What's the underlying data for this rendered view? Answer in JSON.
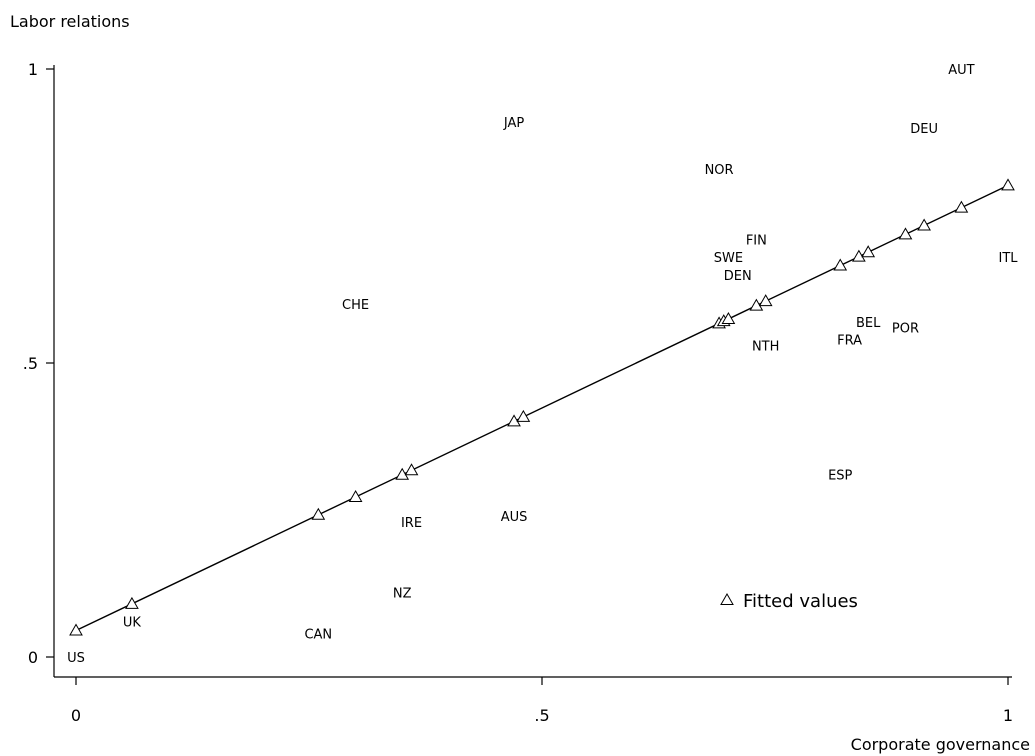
{
  "chart_data": {
    "type": "scatter",
    "xlabel": "Corporate governance",
    "ylabel": "Labor relations",
    "xlim": [
      0,
      1
    ],
    "ylim": [
      0,
      1
    ],
    "xticks": [
      {
        "value": 0,
        "label": "0"
      },
      {
        "value": 0.5,
        "label": ".5"
      },
      {
        "value": 1,
        "label": "1"
      }
    ],
    "yticks": [
      {
        "value": 0,
        "label": "0"
      },
      {
        "value": 0.5,
        "label": ".5"
      },
      {
        "value": 1,
        "label": "1"
      }
    ],
    "grid": false,
    "legend": {
      "position": "bottom-right",
      "entries": [
        "Fitted values"
      ]
    },
    "points": [
      {
        "label": "US",
        "x": 0.0,
        "y": 0.0
      },
      {
        "label": "UK",
        "x": 0.06,
        "y": 0.06
      },
      {
        "label": "CAN",
        "x": 0.26,
        "y": 0.04
      },
      {
        "label": "NZ",
        "x": 0.35,
        "y": 0.11
      },
      {
        "label": "IRE",
        "x": 0.36,
        "y": 0.23
      },
      {
        "label": "AUS",
        "x": 0.47,
        "y": 0.24
      },
      {
        "label": "CHE",
        "x": 0.3,
        "y": 0.6
      },
      {
        "label": "JAP",
        "x": 0.47,
        "y": 0.91
      },
      {
        "label": "NOR",
        "x": 0.69,
        "y": 0.83
      },
      {
        "label": "FIN",
        "x": 0.73,
        "y": 0.71
      },
      {
        "label": "SWE",
        "x": 0.7,
        "y": 0.68
      },
      {
        "label": "DEN",
        "x": 0.71,
        "y": 0.65
      },
      {
        "label": "NTH",
        "x": 0.74,
        "y": 0.53
      },
      {
        "label": "BEL",
        "x": 0.85,
        "y": 0.57
      },
      {
        "label": "FRA",
        "x": 0.83,
        "y": 0.54
      },
      {
        "label": "POR",
        "x": 0.89,
        "y": 0.56
      },
      {
        "label": "ESP",
        "x": 0.82,
        "y": 0.31
      },
      {
        "label": "AUT",
        "x": 0.95,
        "y": 1.0
      },
      {
        "label": "DEU",
        "x": 0.91,
        "y": 0.9
      },
      {
        "label": "ITL",
        "x": 1.0,
        "y": 0.68
      }
    ],
    "fitted": {
      "intercept": 0.045,
      "slope": 0.757,
      "x": [
        0.0,
        0.06,
        0.26,
        0.3,
        0.35,
        0.36,
        0.47,
        0.48,
        0.69,
        0.695,
        0.7,
        0.73,
        0.74,
        0.82,
        0.84,
        0.85,
        0.89,
        0.91,
        0.95,
        1.0
      ]
    },
    "colors": {
      "ink": "#000000",
      "background": "#ffffff"
    }
  }
}
